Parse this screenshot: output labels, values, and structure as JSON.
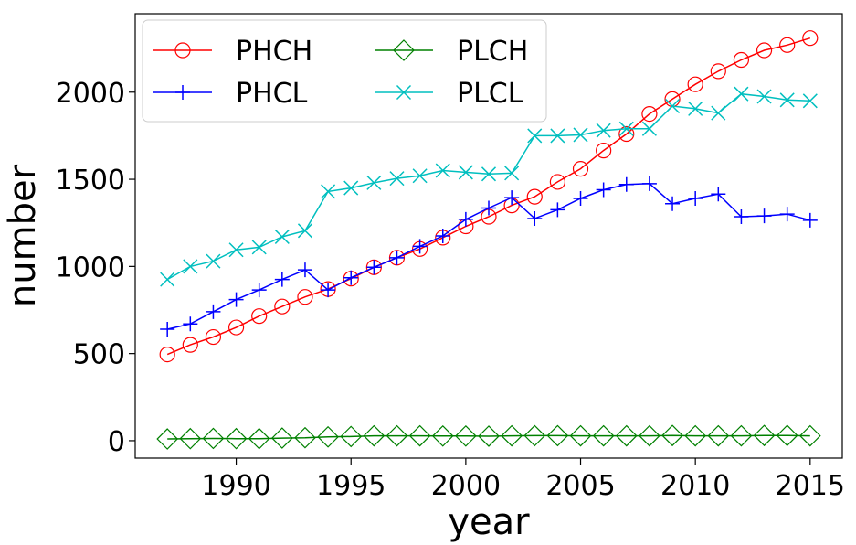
{
  "chart_data": {
    "type": "line",
    "title": "",
    "xlabel": "year",
    "ylabel": "number",
    "xlim": [
      1985.6,
      2016.4
    ],
    "ylim": [
      -100,
      2450
    ],
    "xticks": [
      1990,
      1995,
      2000,
      2005,
      2010,
      2015
    ],
    "yticks": [
      0,
      500,
      1000,
      1500,
      2000
    ],
    "grid": false,
    "legend_position": "top-left",
    "x": [
      1987,
      1988,
      1989,
      1990,
      1991,
      1992,
      1993,
      1994,
      1995,
      1996,
      1997,
      1998,
      1999,
      2000,
      2001,
      2002,
      2003,
      2004,
      2005,
      2006,
      2007,
      2008,
      2009,
      2010,
      2011,
      2012,
      2013,
      2014,
      2015
    ],
    "series": [
      {
        "name": "PHCH",
        "color": "#ff0000",
        "marker": "circle",
        "values": [
          495,
          550,
          595,
          650,
          715,
          770,
          825,
          870,
          930,
          995,
          1050,
          1100,
          1165,
          1230,
          1285,
          1350,
          1400,
          1485,
          1560,
          1665,
          1760,
          1875,
          1960,
          2045,
          2120,
          2185,
          2240,
          2270,
          2310
        ]
      },
      {
        "name": "PHCL",
        "color": "#0000ff",
        "marker": "plus",
        "values": [
          640,
          670,
          740,
          810,
          865,
          925,
          980,
          865,
          935,
          995,
          1050,
          1115,
          1175,
          1270,
          1335,
          1395,
          1275,
          1325,
          1390,
          1440,
          1470,
          1475,
          1360,
          1390,
          1415,
          1285,
          1290,
          1300,
          1265
        ]
      },
      {
        "name": "PLCH",
        "color": "#008000",
        "marker": "diamond",
        "values": [
          10,
          12,
          13,
          12,
          12,
          15,
          17,
          22,
          24,
          28,
          28,
          28,
          27,
          27,
          26,
          28,
          29,
          29,
          28,
          28,
          28,
          28,
          30,
          28,
          28,
          28,
          30,
          30,
          28
        ]
      },
      {
        "name": "PLCL",
        "color": "#00bfbf",
        "marker": "x",
        "values": [
          925,
          1000,
          1030,
          1095,
          1110,
          1170,
          1205,
          1430,
          1450,
          1480,
          1505,
          1520,
          1550,
          1540,
          1530,
          1535,
          1750,
          1750,
          1755,
          1780,
          1790,
          1790,
          1920,
          1905,
          1880,
          1990,
          1975,
          1955,
          1950
        ]
      }
    ]
  }
}
